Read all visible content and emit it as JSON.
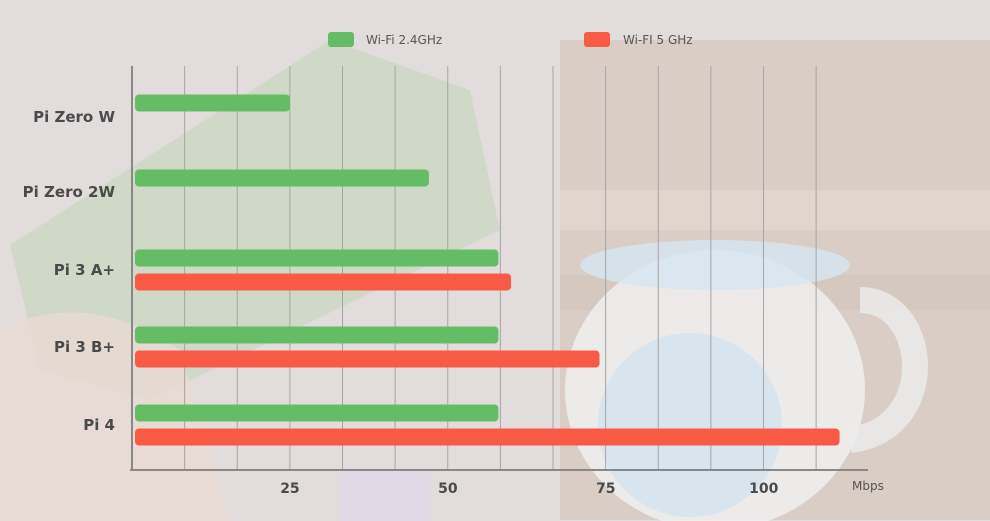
{
  "chart_data": {
    "type": "bar",
    "orientation": "horizontal",
    "categories": [
      "Pi Zero W",
      "Pi Zero 2W",
      "Pi 3 A+",
      "Pi 3 B+",
      "Pi 4"
    ],
    "series": [
      {
        "name": "Wi-Fi 2.4GHz",
        "color": "#64bd64",
        "values": [
          25,
          47,
          58,
          58,
          58
        ]
      },
      {
        "name": "Wi-FI 5 GHz",
        "color": "#f95a45",
        "values": [
          null,
          null,
          60,
          74,
          112
        ]
      }
    ],
    "x_ticks": [
      25,
      50,
      75,
      100
    ],
    "xlim": [
      0,
      116.5
    ],
    "unit": "Mbps",
    "grid": {
      "vertical": true,
      "step": 8.33
    },
    "legend": "top-center"
  }
}
